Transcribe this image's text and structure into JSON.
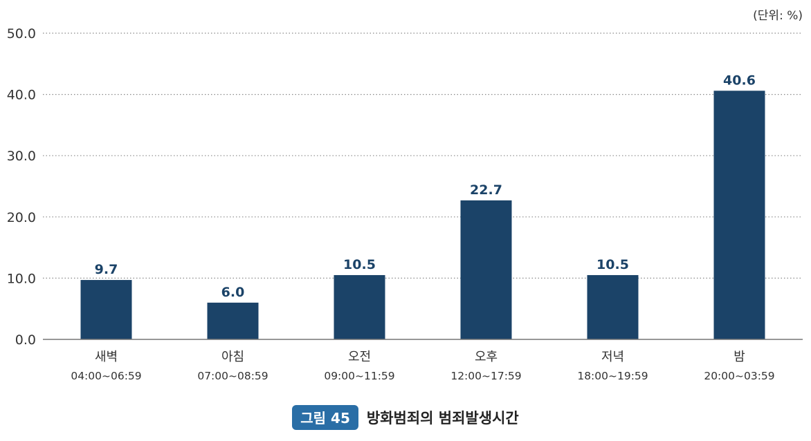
{
  "chart_data": {
    "type": "bar",
    "unit_label": "(단위: %)",
    "categories": [
      "새벽",
      "아침",
      "오전",
      "오후",
      "저녁",
      "밤"
    ],
    "category_times": [
      "04:00~06:59",
      "07:00~08:59",
      "09:00~11:59",
      "12:00~17:59",
      "18:00~19:59",
      "20:00~03:59"
    ],
    "values": [
      9.7,
      6.0,
      10.5,
      22.7,
      10.5,
      40.6
    ],
    "value_labels": [
      "9.7",
      "6.0",
      "10.5",
      "22.7",
      "10.5",
      "40.6"
    ],
    "yticks": [
      0,
      10,
      20,
      30,
      40,
      50
    ],
    "ytick_labels": [
      "0.0",
      "10.0",
      "20.0",
      "30.0",
      "40.0",
      "50.0"
    ],
    "ylim": [
      0,
      50
    ],
    "grid": true,
    "colors": {
      "bar": "#1b4368",
      "value_label": "#1b4368",
      "grid": "#888888",
      "axis": "#777777",
      "text": "#333333"
    }
  },
  "caption": {
    "figure_label": "그림 45",
    "title": "방화범죄의 범죄발생시간",
    "badge_color": "#2a6ea6"
  }
}
